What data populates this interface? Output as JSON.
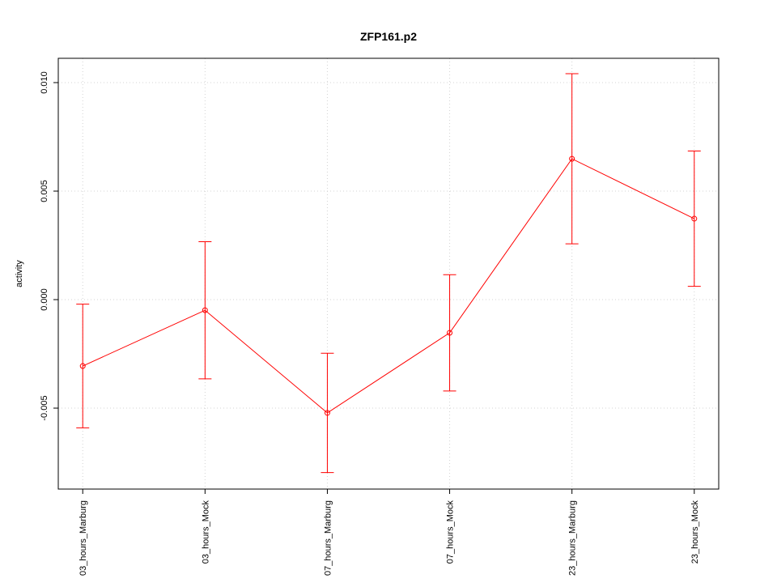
{
  "chart_data": {
    "type": "errorline",
    "title": "ZFP161.p2",
    "y_label": "activity",
    "categories": [
      "03_hours_Marburg",
      "03_hours_Mock",
      "07_hours_Marburg",
      "07_hours_Mock",
      "23_hours_Marburg",
      "23_hours_Mock"
    ],
    "values": [
      -0.00306,
      -0.00049,
      -0.00522,
      -0.00153,
      0.00649,
      0.00373
    ],
    "errors": [
      0.00285,
      0.00316,
      0.00275,
      0.00268,
      0.00392,
      0.00312
    ],
    "color": "#ff0000",
    "ylim": [
      -0.00873,
      0.01112
    ],
    "yticks": [
      -0.005,
      {
        "value": 0,
        "label": "0.000"
      },
      0.005,
      {
        "value": 0.01,
        "label": "0.010"
      }
    ],
    "grid": true
  }
}
